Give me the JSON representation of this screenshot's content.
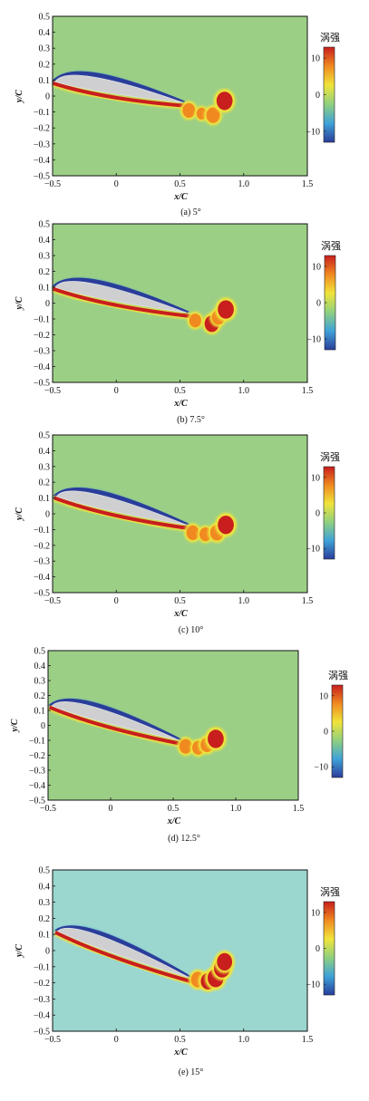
{
  "figure": {
    "colorbar_label": "涡强",
    "colormap": [
      "#2a3d9a",
      "#3fa2d8",
      "#8fd07f",
      "#f0e43a",
      "#f08a20",
      "#c81e1e"
    ]
  },
  "chart_data": [
    {
      "type": "heatmap",
      "caption": "(a) 5°",
      "xlabel": "x/C",
      "ylabel": "y/C",
      "xlim": [
        -0.5,
        1.5
      ],
      "ylim": [
        -0.5,
        0.5
      ],
      "xticks": [
        -0.5,
        0,
        0.5,
        1.0,
        1.5
      ],
      "xtick_labels": [
        "−0.5",
        "0",
        "0.5",
        "1.0",
        "1.5"
      ],
      "yticks": [
        0.5,
        0.4,
        0.3,
        0.2,
        0.1,
        0,
        -0.1,
        -0.2,
        -0.3,
        -0.4,
        -0.5
      ],
      "ytick_labels": [
        "0.5",
        "0.4",
        "0.3",
        "0.2",
        "0.1",
        "0",
        "−0.1",
        "−0.2",
        "−0.3",
        "−0.4",
        "−0.5"
      ],
      "background_color": "#9ccf86",
      "colorbar": {
        "ticks": [
          10,
          0,
          -10
        ],
        "tick_labels": [
          "10",
          "0",
          "−10"
        ],
        "range": [
          -13,
          13
        ]
      },
      "angle_of_attack_deg": 5,
      "airfoil": {
        "leading_edge": [
          -0.48,
          0.09
        ],
        "trailing_edge": [
          0.52,
          -0.04
        ],
        "thickness": 0.1
      },
      "wake_blobs": [
        {
          "x": 0.57,
          "y": -0.09,
          "vort": 9
        },
        {
          "x": 0.67,
          "y": -0.11,
          "vort": 6
        },
        {
          "x": 0.76,
          "y": -0.12,
          "vort": 10
        },
        {
          "x": 0.85,
          "y": -0.03,
          "vort": 13
        }
      ]
    },
    {
      "type": "heatmap",
      "caption": "(b) 7.5°",
      "xlabel": "x/C",
      "ylabel": "y/C",
      "xlim": [
        -0.5,
        1.5
      ],
      "ylim": [
        -0.5,
        0.5
      ],
      "xticks": [
        -0.5,
        0,
        0.5,
        1.0,
        1.5
      ],
      "xtick_labels": [
        "−0.5",
        "0",
        "0.5",
        "1.0",
        "1.5"
      ],
      "yticks": [
        0.5,
        0.4,
        0.3,
        0.2,
        0.1,
        0,
        -0.1,
        -0.2,
        -0.3,
        -0.4,
        -0.5
      ],
      "ytick_labels": [
        "0.5",
        "0.4",
        "0.3",
        "0.2",
        "0.1",
        "0",
        "−0.1",
        "−0.2",
        "−0.3",
        "−0.4",
        "−0.5"
      ],
      "background_color": "#9ccf86",
      "colorbar": {
        "ticks": [
          10,
          0,
          -10
        ],
        "tick_labels": [
          "10",
          "0",
          "−10"
        ],
        "range": [
          -13,
          13
        ]
      },
      "angle_of_attack_deg": 7.5,
      "airfoil": {
        "leading_edge": [
          -0.48,
          0.1
        ],
        "trailing_edge": [
          0.55,
          -0.06
        ],
        "thickness": 0.1
      },
      "wake_blobs": [
        {
          "x": 0.62,
          "y": -0.11,
          "vort": 8
        },
        {
          "x": 0.75,
          "y": -0.13,
          "vort": 11
        },
        {
          "x": 0.8,
          "y": -0.09,
          "vort": 9
        },
        {
          "x": 0.86,
          "y": -0.04,
          "vort": 13
        }
      ]
    },
    {
      "type": "heatmap",
      "caption": "(c) 10°",
      "xlabel": "x/C",
      "ylabel": "y/C",
      "xlim": [
        -0.5,
        1.5
      ],
      "ylim": [
        -0.5,
        0.5
      ],
      "xticks": [
        -0.5,
        0,
        0.5,
        1.0,
        1.5
      ],
      "xtick_labels": [
        "−0.5",
        "0",
        "0.5",
        "1.0",
        "1.5"
      ],
      "yticks": [
        0.5,
        0.4,
        0.3,
        0.2,
        0.1,
        0,
        -0.1,
        -0.2,
        -0.3,
        -0.4,
        -0.5
      ],
      "ytick_labels": [
        "0.5",
        "0.4",
        "0.3",
        "0.2",
        "0.1",
        "0",
        "−0.1",
        "−0.2",
        "−0.3",
        "−0.4",
        "−0.5"
      ],
      "background_color": "#9ccf86",
      "colorbar": {
        "ticks": [
          10,
          0,
          -10
        ],
        "tick_labels": [
          "10",
          "0",
          "−10"
        ],
        "range": [
          -13,
          13
        ]
      },
      "angle_of_attack_deg": 10,
      "airfoil": {
        "leading_edge": [
          -0.47,
          0.11
        ],
        "trailing_edge": [
          0.55,
          -0.07
        ],
        "thickness": 0.1
      },
      "wake_blobs": [
        {
          "x": 0.6,
          "y": -0.12,
          "vort": 9
        },
        {
          "x": 0.7,
          "y": -0.13,
          "vort": 8
        },
        {
          "x": 0.79,
          "y": -0.12,
          "vort": 10
        },
        {
          "x": 0.86,
          "y": -0.07,
          "vort": 13
        }
      ]
    },
    {
      "type": "heatmap",
      "caption": "(d) 12.5°",
      "xlabel": "x/C",
      "ylabel": "y/C",
      "xlim": [
        -0.5,
        1.5
      ],
      "ylim": [
        -0.5,
        0.5
      ],
      "xticks": [
        -0.5,
        0,
        0.5,
        1.0,
        1.5
      ],
      "xtick_labels": [
        "−0.5",
        "0",
        "0.5",
        "1.0",
        "1.5"
      ],
      "yticks": [
        0.5,
        0.4,
        0.3,
        0.2,
        0.1,
        0,
        -0.1,
        -0.2,
        -0.3,
        -0.4,
        -0.5
      ],
      "ytick_labels": [
        "0.5",
        "0.4",
        "0.3",
        "0.2",
        "0.1",
        "0",
        "−0.1",
        "−0.2",
        "−0.3",
        "−0.4",
        "−0.5"
      ],
      "background_color": "#9ccf86",
      "colorbar": {
        "ticks": [
          10,
          0,
          -10
        ],
        "tick_labels": [
          "10",
          "0",
          "−10"
        ],
        "range": [
          -13,
          13
        ]
      },
      "angle_of_attack_deg": 12.5,
      "airfoil": {
        "leading_edge": [
          -0.47,
          0.13
        ],
        "trailing_edge": [
          0.55,
          -0.1
        ],
        "thickness": 0.1
      },
      "wake_blobs": [
        {
          "x": 0.6,
          "y": -0.14,
          "vort": 9
        },
        {
          "x": 0.7,
          "y": -0.15,
          "vort": 8
        },
        {
          "x": 0.77,
          "y": -0.13,
          "vort": 9
        },
        {
          "x": 0.84,
          "y": -0.09,
          "vort": 13
        }
      ]
    },
    {
      "type": "heatmap",
      "caption": "(e) 15°",
      "xlabel": "x/C",
      "ylabel": "y/C",
      "xlim": [
        -0.5,
        1.5
      ],
      "ylim": [
        -0.5,
        0.5
      ],
      "xticks": [
        -0.5,
        0,
        0.5,
        1.0,
        1.5
      ],
      "xtick_labels": [
        "−0.5",
        "0",
        "0.5",
        "1.0",
        "1.5"
      ],
      "yticks": [
        0.5,
        0.4,
        0.3,
        0.2,
        0.1,
        0,
        -0.1,
        -0.2,
        -0.3,
        -0.4,
        -0.5
      ],
      "ytick_labels": [
        "0.5",
        "0.4",
        "0.3",
        "0.2",
        "0.1",
        "0",
        "−0.1",
        "−0.2",
        "−0.3",
        "−0.4",
        "−0.5"
      ],
      "background_color": "#9bd6cf",
      "colorbar": {
        "ticks": [
          10,
          0,
          -10
        ],
        "tick_labels": [
          "10",
          "0",
          "−10"
        ],
        "range": [
          -13,
          13
        ]
      },
      "angle_of_attack_deg": 15,
      "airfoil": {
        "leading_edge": [
          -0.46,
          0.12
        ],
        "trailing_edge": [
          0.58,
          -0.17
        ],
        "thickness": 0.09
      },
      "wake_blobs": [
        {
          "x": 0.64,
          "y": -0.18,
          "vort": 10
        },
        {
          "x": 0.72,
          "y": -0.19,
          "vort": 11
        },
        {
          "x": 0.78,
          "y": -0.17,
          "vort": 13
        },
        {
          "x": 0.83,
          "y": -0.11,
          "vort": 13
        },
        {
          "x": 0.85,
          "y": -0.07,
          "vort": 12
        }
      ]
    }
  ]
}
